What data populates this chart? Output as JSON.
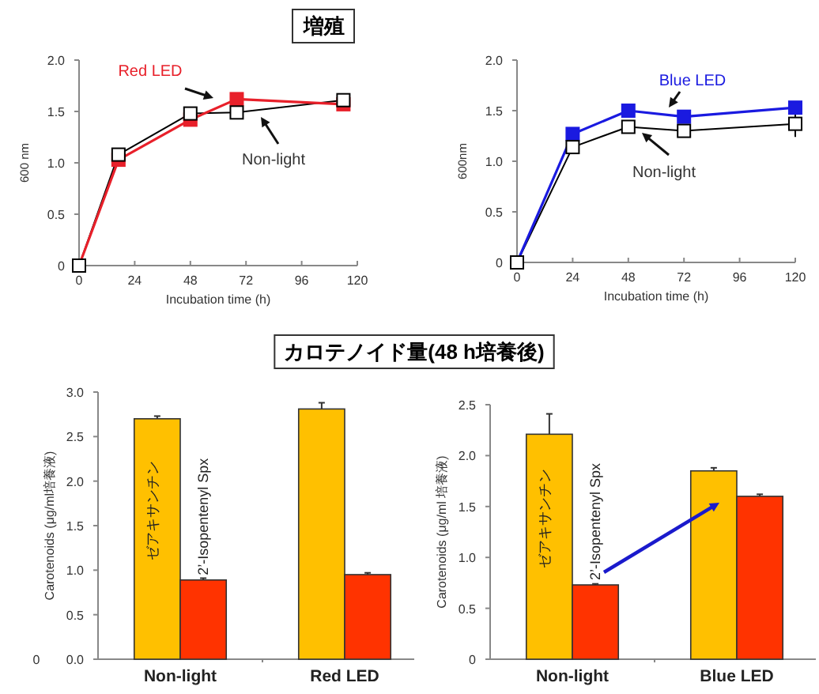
{
  "chart_data": [
    {
      "type": "line",
      "title": "増殖",
      "xlabel": "Incubation time (h)",
      "ylabel": "600 nm",
      "xlim": [
        0,
        120
      ],
      "ylim": [
        0,
        2
      ],
      "xticks": [
        0,
        24,
        48,
        72,
        96,
        120
      ],
      "yticks": [
        {
          "value": 0,
          "label": "0"
        },
        {
          "value": 0.5,
          "label": "0.5"
        },
        {
          "value": 1,
          "label": "1.0"
        },
        {
          "value": 1.5,
          "label": "1.5"
        },
        {
          "value": 2,
          "label": "2.0"
        }
      ],
      "marker": "square",
      "series": [
        {
          "name": "Non-light",
          "color": "#000000",
          "x": [
            0,
            17,
            48,
            68,
            114
          ],
          "values": [
            0,
            1.08,
            1.48,
            1.49,
            1.61
          ]
        },
        {
          "name": "Red LED",
          "color": "#e8202a",
          "x": [
            0,
            17,
            48,
            68,
            114
          ],
          "values": [
            0,
            1.03,
            1.42,
            1.62,
            1.57
          ]
        }
      ]
    },
    {
      "type": "line",
      "xlabel": "Incubation time (h)",
      "ylabel": "600nm",
      "xlim": [
        0,
        120
      ],
      "ylim": [
        0,
        2
      ],
      "xticks": [
        0,
        24,
        48,
        72,
        96,
        120
      ],
      "yticks": [
        {
          "value": 0,
          "label": "0"
        },
        {
          "value": 0.5,
          "label": "0.5"
        },
        {
          "value": 1,
          "label": "1.0"
        },
        {
          "value": 1.5,
          "label": "1.5"
        },
        {
          "value": 2,
          "label": "2.0"
        }
      ],
      "marker": "square",
      "series": [
        {
          "name": "Non-light",
          "color": "#000000",
          "x": [
            0,
            24,
            48,
            72,
            120
          ],
          "values": [
            0,
            1.14,
            1.34,
            1.3,
            1.37
          ],
          "errors": [
            null,
            null,
            null,
            null,
            0.13
          ]
        },
        {
          "name": "Blue LED",
          "color": "#1a1ae0",
          "x": [
            0,
            24,
            48,
            72,
            120
          ],
          "values": [
            0,
            1.27,
            1.5,
            1.44,
            1.53
          ]
        }
      ]
    },
    {
      "type": "bar",
      "title": "カロテノイド量(48 h培養後)",
      "ylabel": "Carotenoids (μg/ml培養液)",
      "categories": [
        "Non-light",
        "Red LED"
      ],
      "ylim": [
        0,
        3
      ],
      "yticks": [
        {
          "value": 0,
          "label": "0.0"
        },
        {
          "value": 0.5,
          "label": "0.5"
        },
        {
          "value": 1,
          "label": "1.0"
        },
        {
          "value": 1.5,
          "label": "1.5"
        },
        {
          "value": 2,
          "label": "2.0"
        },
        {
          "value": 2.5,
          "label": "2.5"
        },
        {
          "value": 3,
          "label": "3.0"
        }
      ],
      "annotations": [
        "0"
      ],
      "series": [
        {
          "name": "ゼアキサンチン",
          "color": "#ffc000",
          "values": [
            2.7,
            2.81
          ],
          "errors": [
            0.03,
            0.07
          ]
        },
        {
          "name": "2’-Isopentenyl Spx",
          "color": "#ff3300",
          "values": [
            0.89,
            0.95
          ],
          "errors": [
            0.02,
            0.02
          ]
        }
      ]
    },
    {
      "type": "bar",
      "ylabel": "Carotenoids (μg/ml 培養液)",
      "categories": [
        "Non-light",
        "Blue LED"
      ],
      "ylim": [
        0,
        2.5
      ],
      "yticks": [
        0,
        0.5,
        {
          "value": 1,
          "label": "1.0"
        },
        1.5,
        {
          "value": 2,
          "label": "2.0"
        },
        2.5
      ],
      "series": [
        {
          "name": "ゼアキサンチン",
          "color": "#ffc000",
          "values": [
            2.21,
            1.85
          ],
          "errors": [
            0.2,
            0.03
          ]
        },
        {
          "name": "2’-Isopentenyl Spx",
          "color": "#ff3300",
          "values": [
            0.73,
            1.6
          ],
          "errors": [
            0.01,
            0.02
          ]
        }
      ]
    }
  ]
}
